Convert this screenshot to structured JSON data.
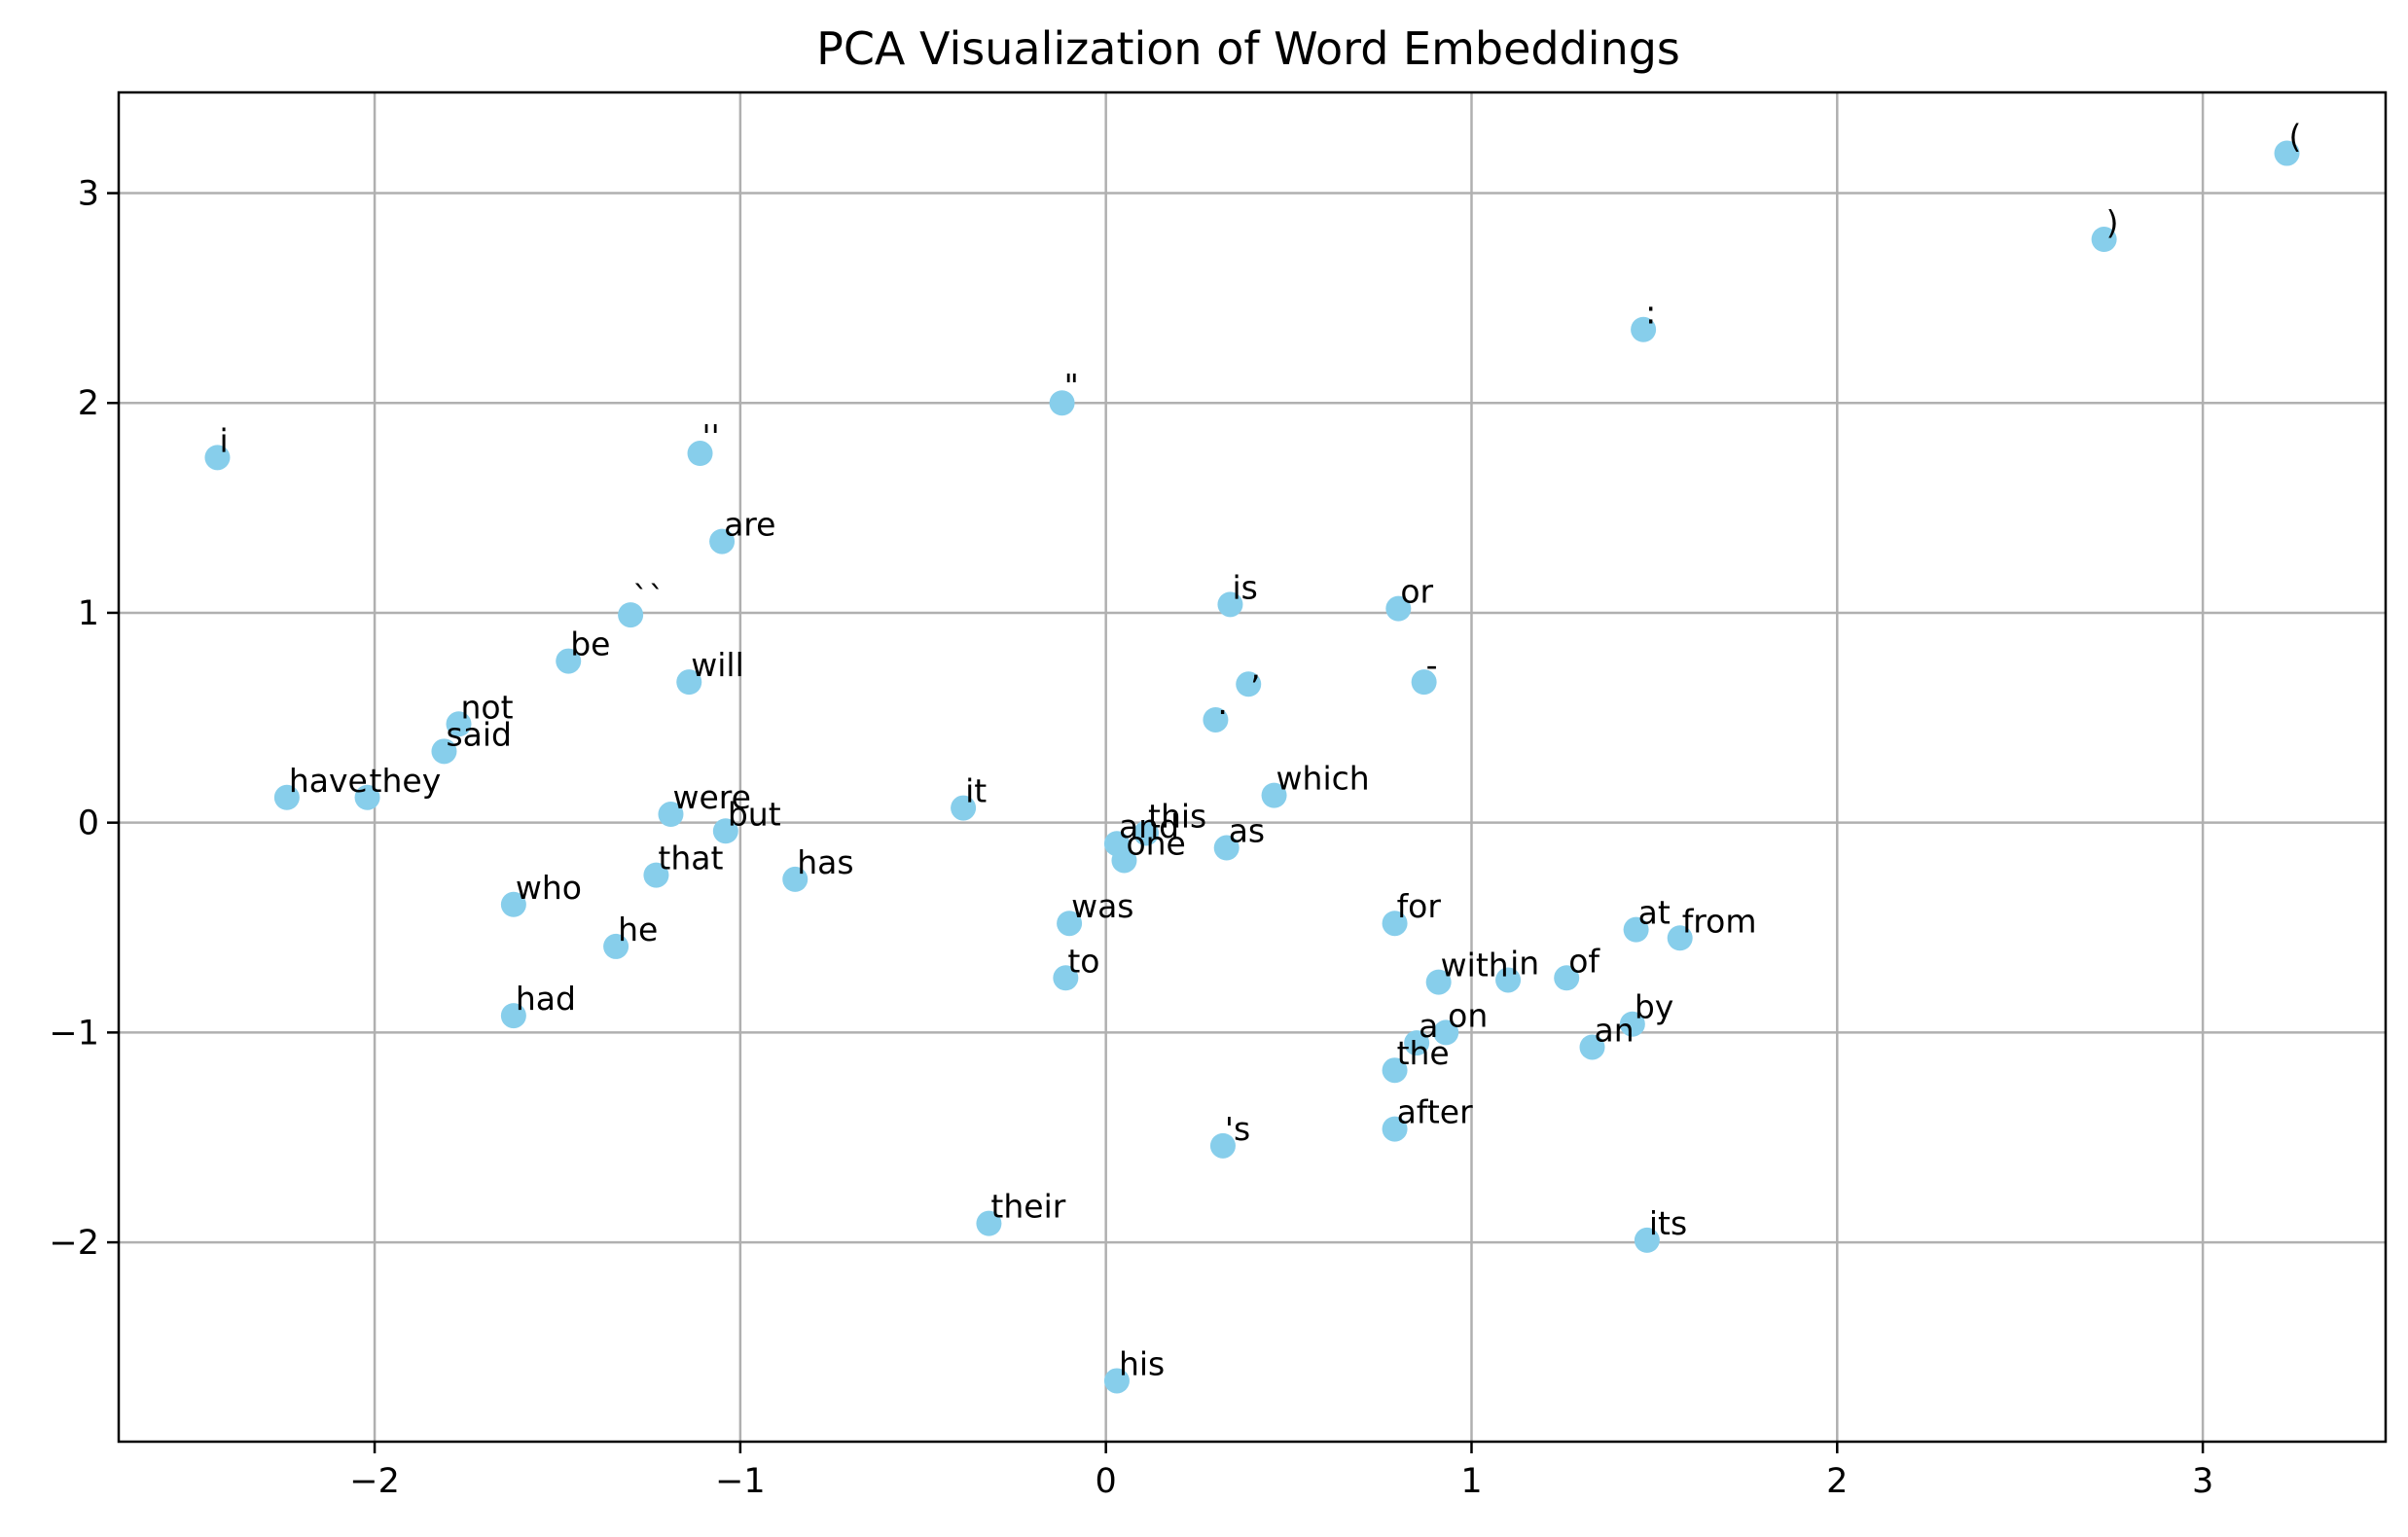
{
  "chart_data": {
    "type": "scatter",
    "title": "PCA Visualization of Word Embeddings",
    "xlabel": "",
    "ylabel": "",
    "xlim": [
      -2.7,
      3.5
    ],
    "ylim": [
      -2.95,
      3.48
    ],
    "xticks": [
      -2,
      -1,
      0,
      1,
      2,
      3
    ],
    "yticks": [
      -2,
      -1,
      0,
      1,
      2,
      3
    ],
    "xtick_labels": [
      "−2",
      "−1",
      "0",
      "1",
      "2",
      "3"
    ],
    "ytick_labels": [
      "−2",
      "−1",
      "0",
      "1",
      "2",
      "3"
    ],
    "grid": true,
    "point_color": "#87ceeb",
    "points": [
      {
        "label": "(",
        "x": 3.23,
        "y": 3.19
      },
      {
        "label": ")",
        "x": 2.73,
        "y": 2.78
      },
      {
        "label": ":",
        "x": 1.47,
        "y": 2.35
      },
      {
        "label": "\"",
        "x": -0.12,
        "y": 2.0
      },
      {
        "label": "i",
        "x": -2.43,
        "y": 1.74
      },
      {
        "label": "''",
        "x": -1.11,
        "y": 1.76
      },
      {
        "label": "are",
        "x": -1.05,
        "y": 1.34
      },
      {
        "label": "``",
        "x": -1.3,
        "y": 0.99
      },
      {
        "label": "is",
        "x": 0.34,
        "y": 1.04
      },
      {
        "label": "or",
        "x": 0.8,
        "y": 1.02
      },
      {
        "label": "be",
        "x": -1.47,
        "y": 0.77
      },
      {
        "label": "will",
        "x": -1.14,
        "y": 0.67
      },
      {
        "label": ",",
        "x": 0.39,
        "y": 0.66
      },
      {
        "label": "-",
        "x": 0.87,
        "y": 0.67
      },
      {
        "label": ".",
        "x": 0.3,
        "y": 0.49
      },
      {
        "label": "not",
        "x": -1.77,
        "y": 0.47
      },
      {
        "label": "said",
        "x": -1.81,
        "y": 0.34
      },
      {
        "label": "have",
        "x": -2.24,
        "y": 0.12
      },
      {
        "label": "they",
        "x": -2.02,
        "y": 0.12
      },
      {
        "label": "which",
        "x": 0.46,
        "y": 0.13
      },
      {
        "label": "it",
        "x": -0.39,
        "y": 0.07
      },
      {
        "label": "were",
        "x": -1.19,
        "y": 0.04
      },
      {
        "label": "but",
        "x": -1.04,
        "y": -0.04
      },
      {
        "label": "this",
        "x": 0.11,
        "y": -0.05
      },
      {
        "label": "and",
        "x": 0.03,
        "y": -0.1
      },
      {
        "label": "one",
        "x": 0.05,
        "y": -0.18
      },
      {
        "label": "as",
        "x": 0.33,
        "y": -0.12
      },
      {
        "label": "that",
        "x": -1.23,
        "y": -0.25
      },
      {
        "label": "has",
        "x": -0.85,
        "y": -0.27
      },
      {
        "label": "who",
        "x": -1.62,
        "y": -0.39
      },
      {
        "label": "he",
        "x": -1.34,
        "y": -0.59
      },
      {
        "label": "was",
        "x": -0.1,
        "y": -0.48
      },
      {
        "label": "to",
        "x": -0.11,
        "y": -0.74
      },
      {
        "label": "for",
        "x": 0.79,
        "y": -0.48
      },
      {
        "label": "at",
        "x": 1.45,
        "y": -0.51
      },
      {
        "label": "from",
        "x": 1.57,
        "y": -0.55
      },
      {
        "label": "with",
        "x": 0.91,
        "y": -0.76
      },
      {
        "label": "in",
        "x": 1.1,
        "y": -0.75
      },
      {
        "label": "of",
        "x": 1.26,
        "y": -0.74
      },
      {
        "label": "had",
        "x": -1.62,
        "y": -0.92
      },
      {
        "label": "a",
        "x": 0.85,
        "y": -1.05
      },
      {
        "label": "on",
        "x": 0.93,
        "y": -1.0
      },
      {
        "label": "by",
        "x": 1.44,
        "y": -0.96
      },
      {
        "label": "an",
        "x": 1.33,
        "y": -1.07
      },
      {
        "label": "the",
        "x": 0.79,
        "y": -1.18
      },
      {
        "label": "after",
        "x": 0.79,
        "y": -1.46
      },
      {
        "label": "'s",
        "x": 0.32,
        "y": -1.54
      },
      {
        "label": "their",
        "x": -0.32,
        "y": -1.91
      },
      {
        "label": "its",
        "x": 1.48,
        "y": -1.99
      },
      {
        "label": "his",
        "x": 0.03,
        "y": -2.66
      }
    ]
  }
}
